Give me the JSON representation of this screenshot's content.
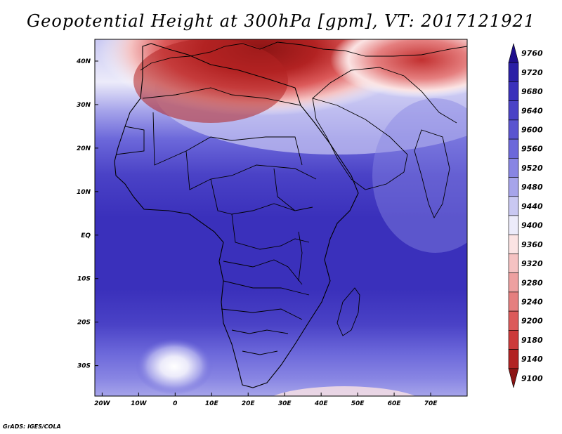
{
  "title": "Geopotential Height at 300hPa [gpm], VT: 2017121921",
  "credit": "GrADS: IGES/COLA",
  "map": {
    "lon_range": [
      -22,
      80
    ],
    "lat_range": [
      -37,
      45
    ],
    "lon_ticks": [
      {
        "v": -20,
        "label": "20W"
      },
      {
        "v": -10,
        "label": "10W"
      },
      {
        "v": 0,
        "label": "0"
      },
      {
        "v": 10,
        "label": "10E"
      },
      {
        "v": 20,
        "label": "20E"
      },
      {
        "v": 30,
        "label": "30E"
      },
      {
        "v": 40,
        "label": "40E"
      },
      {
        "v": 50,
        "label": "50E"
      },
      {
        "v": 60,
        "label": "60E"
      },
      {
        "v": 70,
        "label": "70E"
      }
    ],
    "lat_ticks": [
      {
        "v": 40,
        "label": "40N"
      },
      {
        "v": 30,
        "label": "30N"
      },
      {
        "v": 20,
        "label": "20N"
      },
      {
        "v": 10,
        "label": "10N"
      },
      {
        "v": 0,
        "label": "EQ"
      },
      {
        "v": -10,
        "label": "10S"
      },
      {
        "v": -20,
        "label": "20S"
      },
      {
        "v": -30,
        "label": "30S"
      }
    ]
  },
  "colorbar": {
    "levels": [
      "9760",
      "9720",
      "9680",
      "9640",
      "9600",
      "9560",
      "9520",
      "9480",
      "9440",
      "9400",
      "9360",
      "9320",
      "9280",
      "9240",
      "9200",
      "9180",
      "9140",
      "9100"
    ],
    "colors": [
      "#1f0f8c",
      "#2a1fa6",
      "#3a30bb",
      "#4a42c6",
      "#5a54d0",
      "#6c68da",
      "#8885e3",
      "#a6a4ea",
      "#c9c8f2",
      "#ecebfa",
      "#fbe3e3",
      "#f5c2c2",
      "#eda0a0",
      "#e57f7f",
      "#dc5a5a",
      "#cc3a3a",
      "#b22222",
      "#8c1414"
    ]
  }
}
